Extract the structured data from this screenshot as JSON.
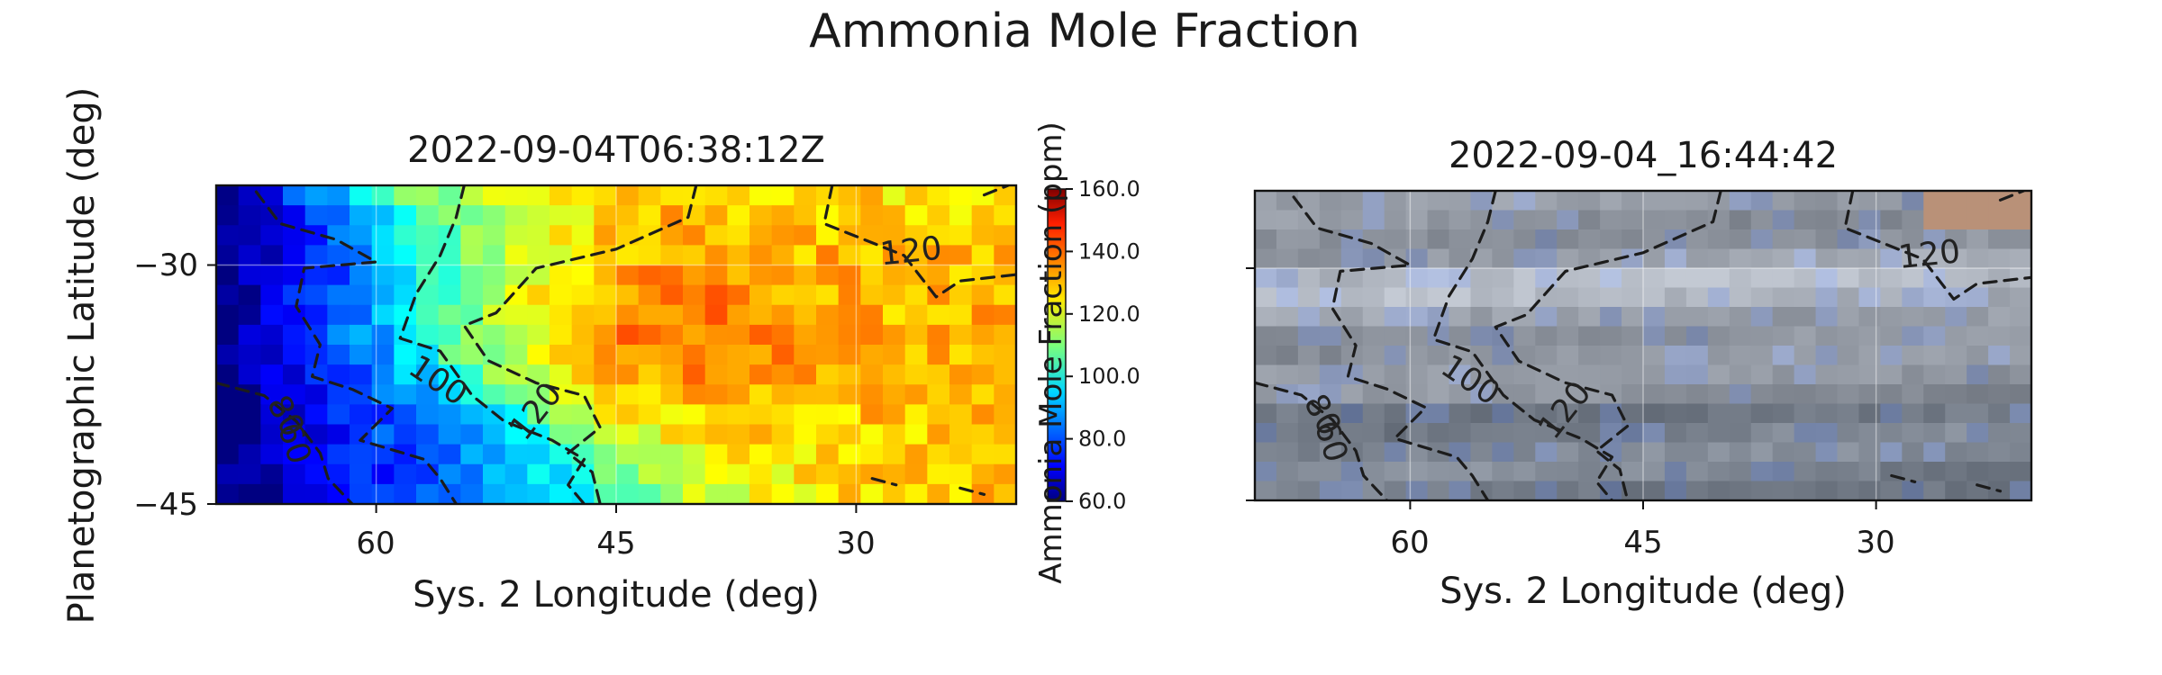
{
  "figure_title": "Ammonia Mole Fraction",
  "chart_data": [
    {
      "type": "heatmap",
      "title": "2022-09-04T06:38:12Z",
      "xlabel": "Sys. 2 Longitude (deg)",
      "ylabel": "Planetographic Latitude (deg)",
      "xlim": [
        70,
        20
      ],
      "ylim": [
        -45,
        -25
      ],
      "xticks": [
        60,
        45,
        30
      ],
      "xtick_labels": [
        "60",
        "45",
        "30"
      ],
      "yticks": [
        -30,
        -45
      ],
      "ytick_labels": [
        "−30",
        "−45"
      ],
      "grid": true,
      "colormap": "jet",
      "colorbar": {
        "label": "Ammonia Mole Fraction (ppm)",
        "range": [
          60,
          160
        ],
        "ticks": [
          60,
          80,
          100,
          120,
          140,
          160
        ],
        "tick_labels": [
          "60.0",
          "80.0",
          "100.0",
          "120.0",
          "140.0",
          "160.0"
        ]
      },
      "contour_levels": [
        60,
        80,
        100,
        120
      ],
      "contour_labels": [
        "60",
        "80",
        "100",
        "120",
        "120"
      ],
      "value_summary": {
        "west_low_corner": 60,
        "west_gradient_zone": [
          70,
          100
        ],
        "central_band": [
          110,
          125
        ],
        "east_plateau": [
          128,
          145
        ],
        "peak": 150
      }
    },
    {
      "type": "heatmap",
      "title": "2022-09-04_16:44:42",
      "xlabel": "Sys. 2 Longitude (deg)",
      "ylabel": "",
      "xlim": [
        70,
        20
      ],
      "ylim": [
        -45,
        -25
      ],
      "xticks": [
        60,
        45,
        30
      ],
      "xtick_labels": [
        "60",
        "45",
        "30"
      ],
      "yticks": [
        -30,
        -45
      ],
      "grid": true,
      "colormap": "visible image (true color)",
      "contour_levels": [
        60,
        80,
        100,
        120
      ],
      "contour_labels": [
        "60",
        "80",
        "100",
        "120",
        "120"
      ]
    }
  ]
}
